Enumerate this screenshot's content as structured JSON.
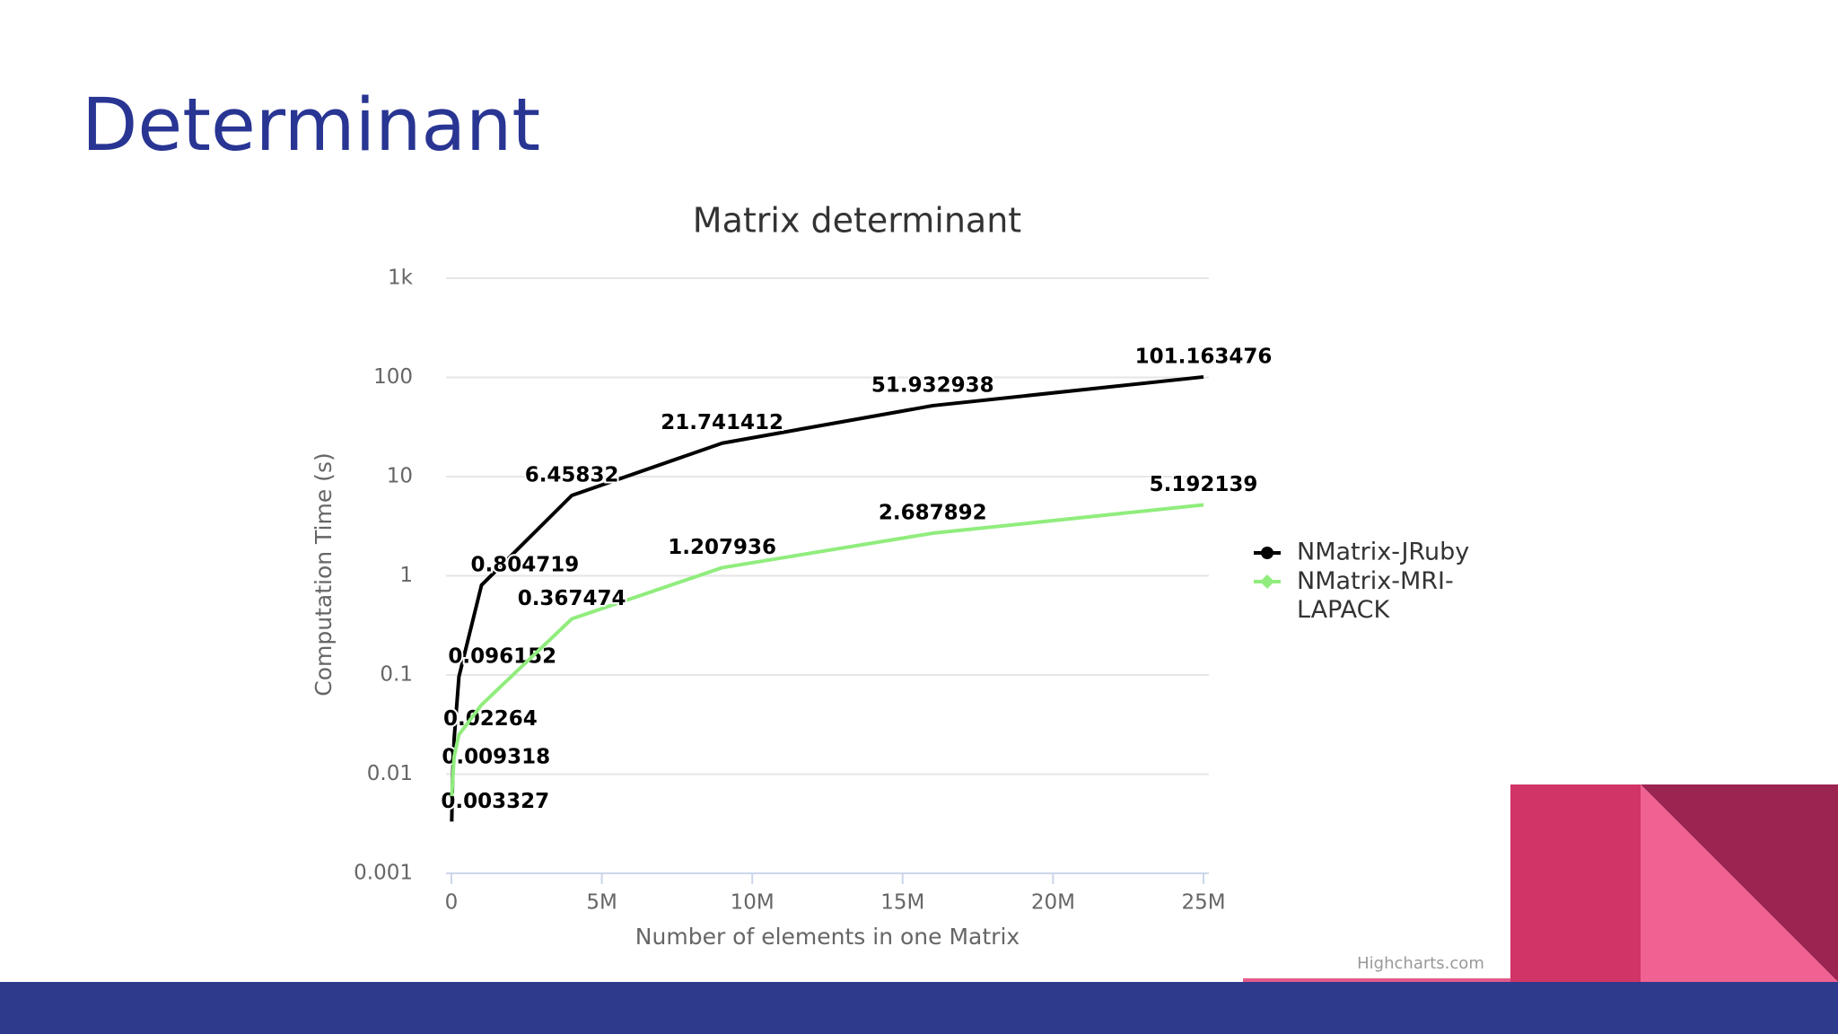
{
  "slide_title": "Determinant",
  "credit": "Highcharts.com",
  "chart_data": {
    "type": "line",
    "title": "Matrix determinant",
    "x_label": "Number of elements in one Matrix",
    "y_label": "Computation Time (s)",
    "log_y": true,
    "grid": true,
    "legend": "right",
    "xlim": [
      0,
      25000000
    ],
    "xticks": [
      0,
      {
        "value": 5000000,
        "label": "5M"
      },
      {
        "value": 10000000,
        "label": "10M"
      },
      {
        "value": 15000000,
        "label": "15M"
      },
      {
        "value": 20000000,
        "label": "20M"
      },
      {
        "value": 25000000,
        "label": "25M"
      }
    ],
    "ylim": [
      0.001,
      1000
    ],
    "yticks": [
      0.001,
      0.01,
      0.1,
      1,
      10,
      100,
      {
        "value": 1000,
        "label": "1k"
      }
    ],
    "series": [
      {
        "name": "NMatrix-JRuby",
        "color": "#000000",
        "x": [
          10000,
          40000,
          90000,
          250000,
          1000000,
          4000000,
          9000000,
          16000000,
          25000000
        ],
        "values": [
          0.003327,
          0.009318,
          0.02264,
          0.096152,
          0.804719,
          6.45832,
          21.741412,
          51.932938,
          101.163476
        ],
        "value_labels": [
          "0.003327",
          "0.009318",
          "0.02264",
          "0.096152",
          "0.804719",
          "6.45832",
          "21.741412",
          "51.932938",
          "101.163476"
        ]
      },
      {
        "name": "NMatrix-MRI-LAPACK",
        "color": "#90ed7d",
        "x": [
          10000,
          90000,
          250000,
          1000000,
          4000000,
          9000000,
          16000000,
          25000000
        ],
        "values": [
          0.006,
          0.015,
          0.025,
          0.05,
          0.367474,
          1.207936,
          2.687892,
          5.192139
        ],
        "value_labels": [
          null,
          null,
          null,
          null,
          "0.367474",
          "1.207936",
          "2.687892",
          "5.192139"
        ]
      }
    ]
  }
}
